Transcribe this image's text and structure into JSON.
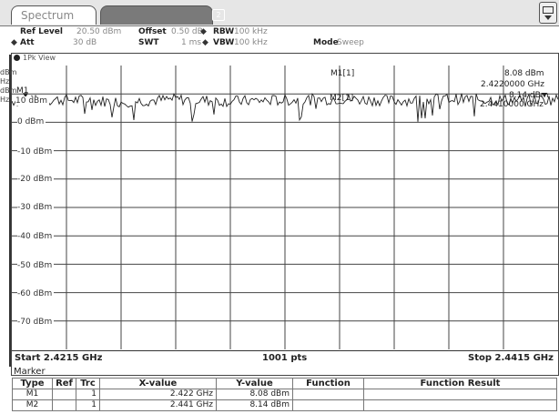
{
  "tabs": {
    "active": "Spectrum",
    "second_number": "2"
  },
  "settings": {
    "ref_level_label": "Ref Level",
    "ref_level_value": "20.50 dBm",
    "offset_label": "Offset",
    "offset_value": "0.50 dB",
    "rbw_label": "RBW",
    "rbw_value": "100 kHz",
    "att_label": "Att",
    "att_value": "30 dB",
    "swt_label": "SWT",
    "swt_value": "1 ms",
    "vbw_label": "VBW",
    "vbw_value": "100 kHz",
    "mode_label": "Mode",
    "mode_value": "Sweep"
  },
  "left_strip": [
    "dBm",
    "Hz",
    "dBm",
    "Hz"
  ],
  "view": {
    "title": "1Pk View"
  },
  "y_axis": {
    "labels": [
      "10 dBm",
      "0 dBm",
      "-10 dBm",
      "-20 dBm",
      "-30 dBm",
      "-40 dBm",
      "-50 dBm",
      "-60 dBm",
      "-70 dBm"
    ]
  },
  "markers": {
    "m1_label": "M1[1]",
    "m1_value": "8.08 dBm",
    "m1_freq": "2.4220000 GHz",
    "m2_label": "M2[1]",
    "m2_value": "8.14 dBm",
    "m2_freq": "2.4410000 GHz",
    "m1_tag": "M1"
  },
  "footer": {
    "start": "Start 2.4215 GHz",
    "pts": "1001 pts",
    "stop": "Stop 2.4415 GHz"
  },
  "marker_table": {
    "title": "Marker",
    "headers": [
      "Type",
      "Ref",
      "Trc",
      "X-value",
      "Y-value",
      "Function",
      "Function Result"
    ],
    "rows": [
      {
        "type": "M1",
        "ref": "",
        "trc": "1",
        "x": "2.422 GHz",
        "y": "8.08 dBm",
        "func": "",
        "result": ""
      },
      {
        "type": "M2",
        "ref": "",
        "trc": "1",
        "x": "2.441 GHz",
        "y": "8.14 dBm",
        "func": "",
        "result": ""
      }
    ]
  },
  "chart_data": {
    "type": "line",
    "x": [
      2.4215,
      2.4235,
      2.4255,
      2.4275,
      2.4295,
      2.4315,
      2.4335,
      2.4355,
      2.4375,
      2.4395,
      2.4415
    ],
    "y": [
      7.5,
      8.0,
      7.2,
      8.1,
      7.4,
      7.8,
      8.2,
      7.6,
      8.3,
      7.9,
      8.0
    ],
    "xlabel": "",
    "ylabel": "",
    "xlim": [
      2.4215,
      2.4415
    ],
    "ylim": [
      -80,
      20
    ],
    "grid": true
  }
}
